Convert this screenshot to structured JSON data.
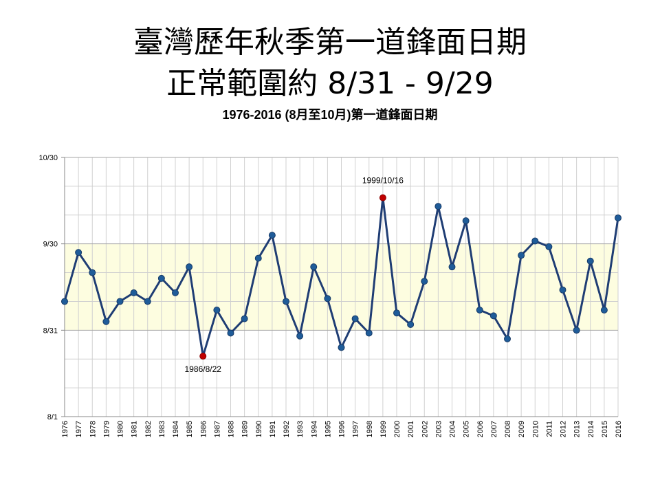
{
  "title_line1": "臺灣歷年秋季第一道鋒面日期",
  "title_line2": "正常範圍約  8/31 - 9/29",
  "chart_data": {
    "type": "line",
    "title": "1976-2016 (8月至10月)第一道鋒面日期",
    "xlabel": "",
    "ylabel": "",
    "x_categories": [
      "1976",
      "1977",
      "1978",
      "1979",
      "1980",
      "1981",
      "1982",
      "1983",
      "1984",
      "1985",
      "1986",
      "1987",
      "1988",
      "1989",
      "1990",
      "1991",
      "1992",
      "1993",
      "1994",
      "1995",
      "1996",
      "1997",
      "1998",
      "1999",
      "2000",
      "2001",
      "2002",
      "2003",
      "2004",
      "2005",
      "2006",
      "2007",
      "2008",
      "2009",
      "2010",
      "2011",
      "2012",
      "2013",
      "2014",
      "2015",
      "2016"
    ],
    "values": [
      "9/10",
      "9/27",
      "9/20",
      "9/3",
      "9/10",
      "9/13",
      "9/10",
      "9/18",
      "9/13",
      "9/22",
      "8/22",
      "9/7",
      "8/30",
      "9/4",
      "9/25",
      "10/3",
      "9/10",
      "8/29",
      "9/22",
      "9/11",
      "8/25",
      "9/4",
      "8/30",
      "10/16",
      "9/6",
      "9/2",
      "9/17",
      "10/13",
      "9/22",
      "10/8",
      "9/7",
      "9/5",
      "8/28",
      "9/26",
      "10/1",
      "9/29",
      "9/14",
      "8/31",
      "9/24",
      "9/7",
      "10/9"
    ],
    "y_ticks": [
      "8/1",
      "8/31",
      "9/30",
      "10/30"
    ],
    "ylim": [
      "8/1",
      "10/30"
    ],
    "normal_range": [
      "8/31",
      "9/29"
    ],
    "band_color": "#fdfde0",
    "line_color": "#1f3d74",
    "marker_color": "#1f5c99",
    "highlight_color": "#c00000",
    "annotations": [
      {
        "x": "1986",
        "text": "1986/8/22"
      },
      {
        "x": "1999",
        "text": "1999/10/16"
      }
    ],
    "grid": true
  }
}
